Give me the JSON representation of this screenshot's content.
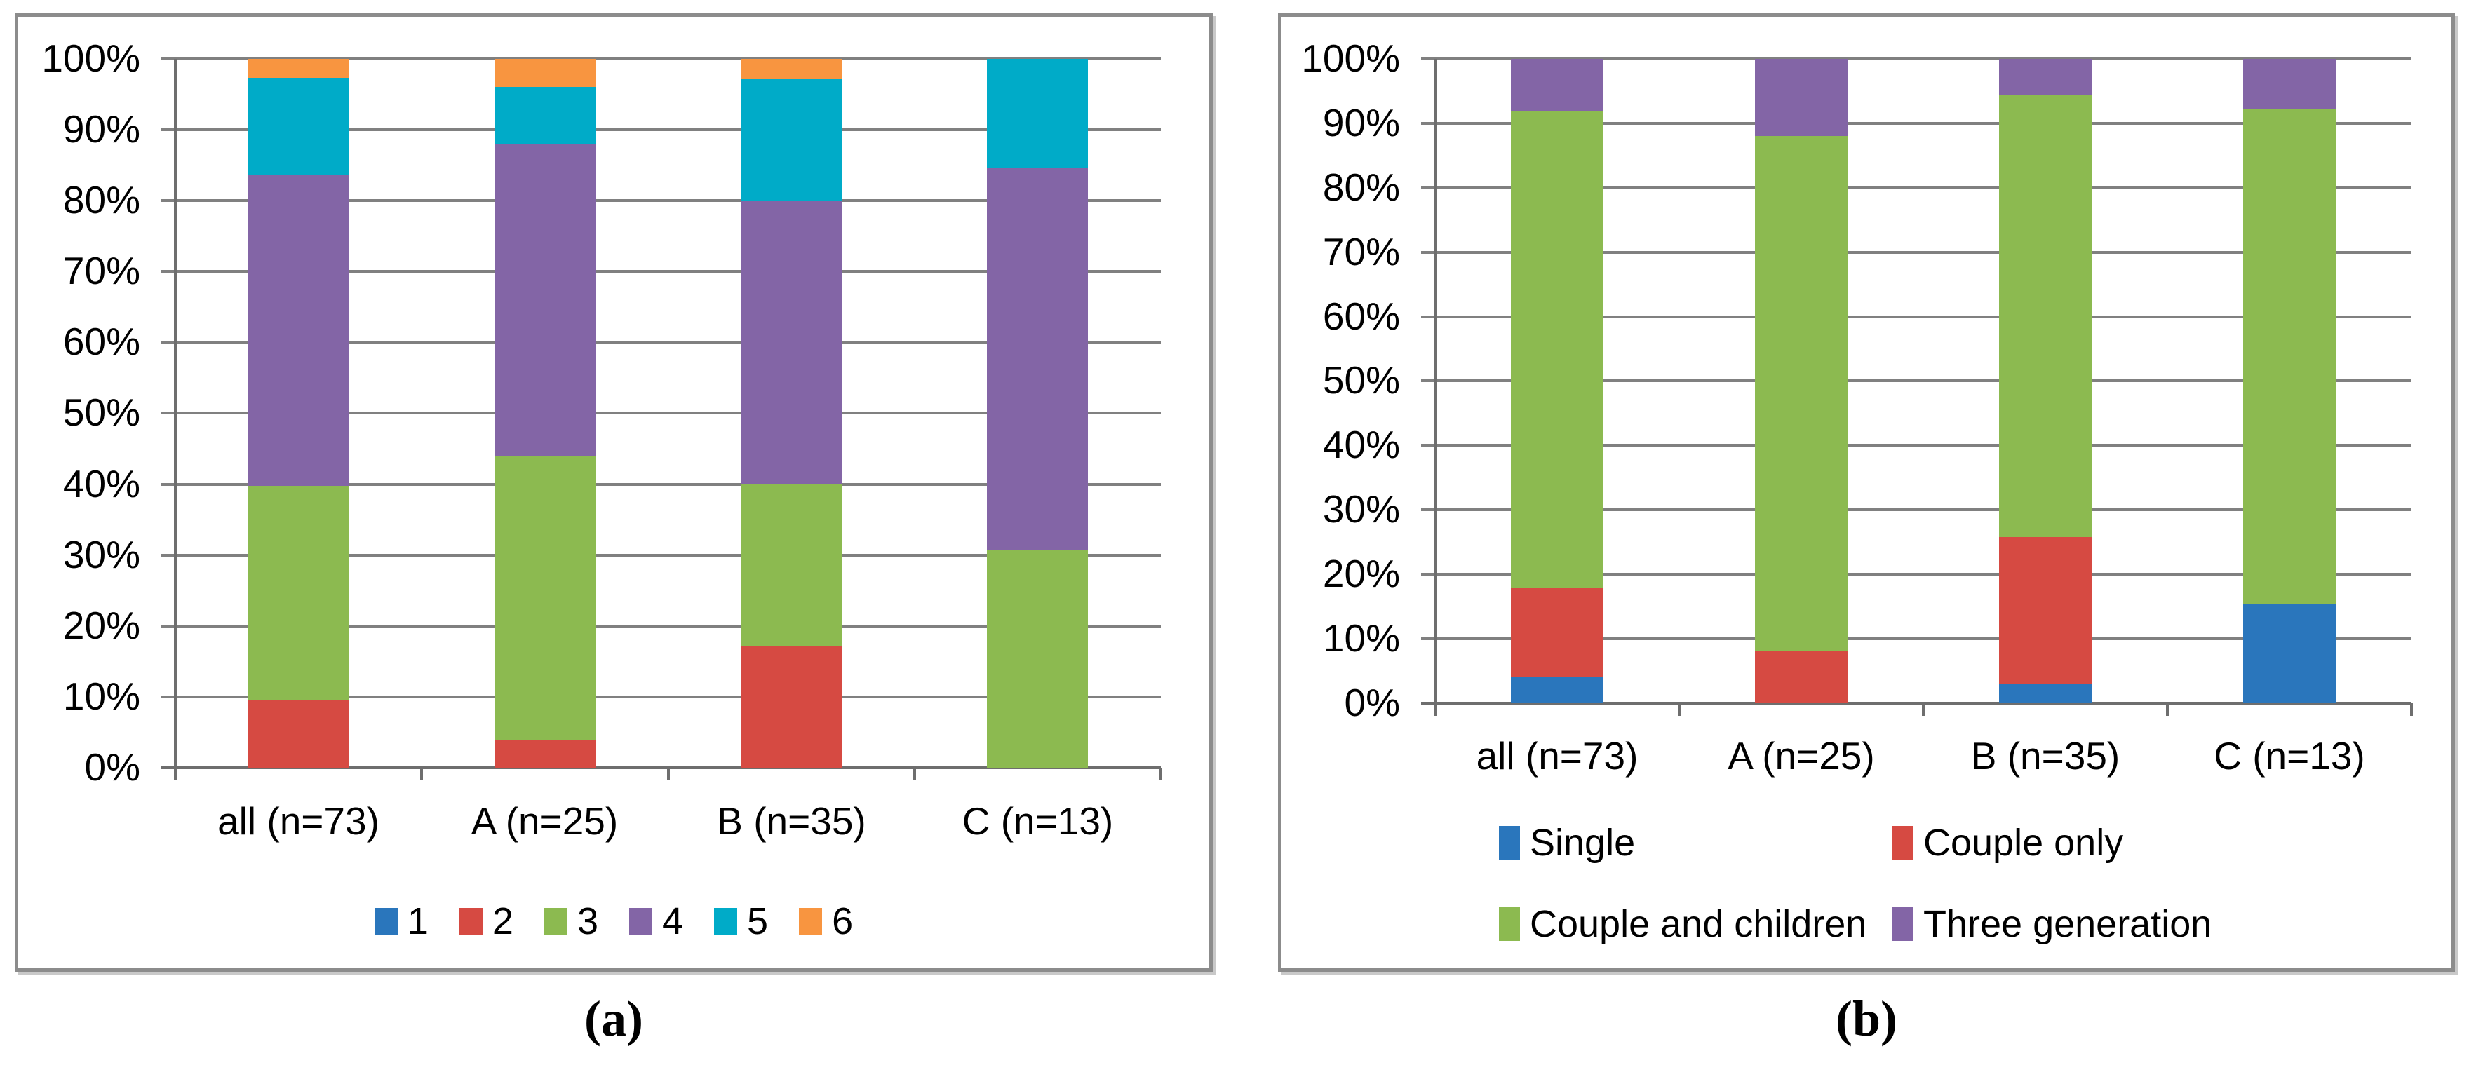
{
  "figure": {
    "captions": {
      "a": "(a)",
      "b": "(b)"
    }
  },
  "colors": {
    "blue": "#2a76bc",
    "red": "#d64a42",
    "green": "#8cba50",
    "purple": "#8365a6",
    "cyan": "#00abc8",
    "orange": "#f89540",
    "gridline": "#808080",
    "axis": "#6e6e6e",
    "panel_border": "#8c8c8c",
    "text": "#000000"
  },
  "chart_data": [
    {
      "id": "a",
      "type": "bar",
      "subtype": "stacked-100-percent-column",
      "title": "",
      "xlabel": "",
      "ylabel": "",
      "ylim": [
        0,
        100
      ],
      "grid": true,
      "ytick_labels": [
        "0%",
        "10%",
        "20%",
        "30%",
        "40%",
        "50%",
        "60%",
        "70%",
        "80%",
        "90%",
        "100%"
      ],
      "categories": [
        "all (n=73)",
        "A (n=25)",
        "B (n=35)",
        "C (n=13)"
      ],
      "legend_position": "bottom-single-row",
      "series": [
        {
          "name": "1",
          "color": "#2a76bc",
          "values": [
            0,
            0,
            0,
            0
          ]
        },
        {
          "name": "2",
          "color": "#d64a42",
          "values": [
            9.6,
            4.0,
            17.1,
            0
          ]
        },
        {
          "name": "3",
          "color": "#8cba50",
          "values": [
            30.1,
            40.0,
            22.9,
            30.8
          ]
        },
        {
          "name": "4",
          "color": "#8365a6",
          "values": [
            43.8,
            44.0,
            40.0,
            53.8
          ]
        },
        {
          "name": "5",
          "color": "#00abc8",
          "values": [
            13.7,
            8.0,
            17.1,
            15.4
          ]
        },
        {
          "name": "6",
          "color": "#f89540",
          "values": [
            2.7,
            4.0,
            2.9,
            0
          ]
        }
      ]
    },
    {
      "id": "b",
      "type": "bar",
      "subtype": "stacked-100-percent-column",
      "title": "",
      "xlabel": "",
      "ylabel": "",
      "ylim": [
        0,
        100
      ],
      "grid": true,
      "ytick_labels": [
        "0%",
        "10%",
        "20%",
        "30%",
        "40%",
        "50%",
        "60%",
        "70%",
        "80%",
        "90%",
        "100%"
      ],
      "categories": [
        "all (n=73)",
        "A (n=25)",
        "B (n=35)",
        "C (n=13)"
      ],
      "legend_position": "bottom-two-rows",
      "legend_rows": [
        [
          "Single",
          "Couple only"
        ],
        [
          "Couple and children",
          "Three generation"
        ]
      ],
      "series": [
        {
          "name": "Single",
          "color": "#2a76bc",
          "values": [
            4.1,
            0,
            2.9,
            15.4
          ]
        },
        {
          "name": "Couple only",
          "color": "#d64a42",
          "values": [
            13.7,
            8.0,
            22.9,
            0
          ]
        },
        {
          "name": "Couple and children",
          "color": "#8cba50",
          "values": [
            74.0,
            80.0,
            68.6,
            76.9
          ]
        },
        {
          "name": "Three generation",
          "color": "#8365a6",
          "values": [
            8.2,
            12.0,
            5.7,
            7.7
          ]
        }
      ]
    }
  ]
}
